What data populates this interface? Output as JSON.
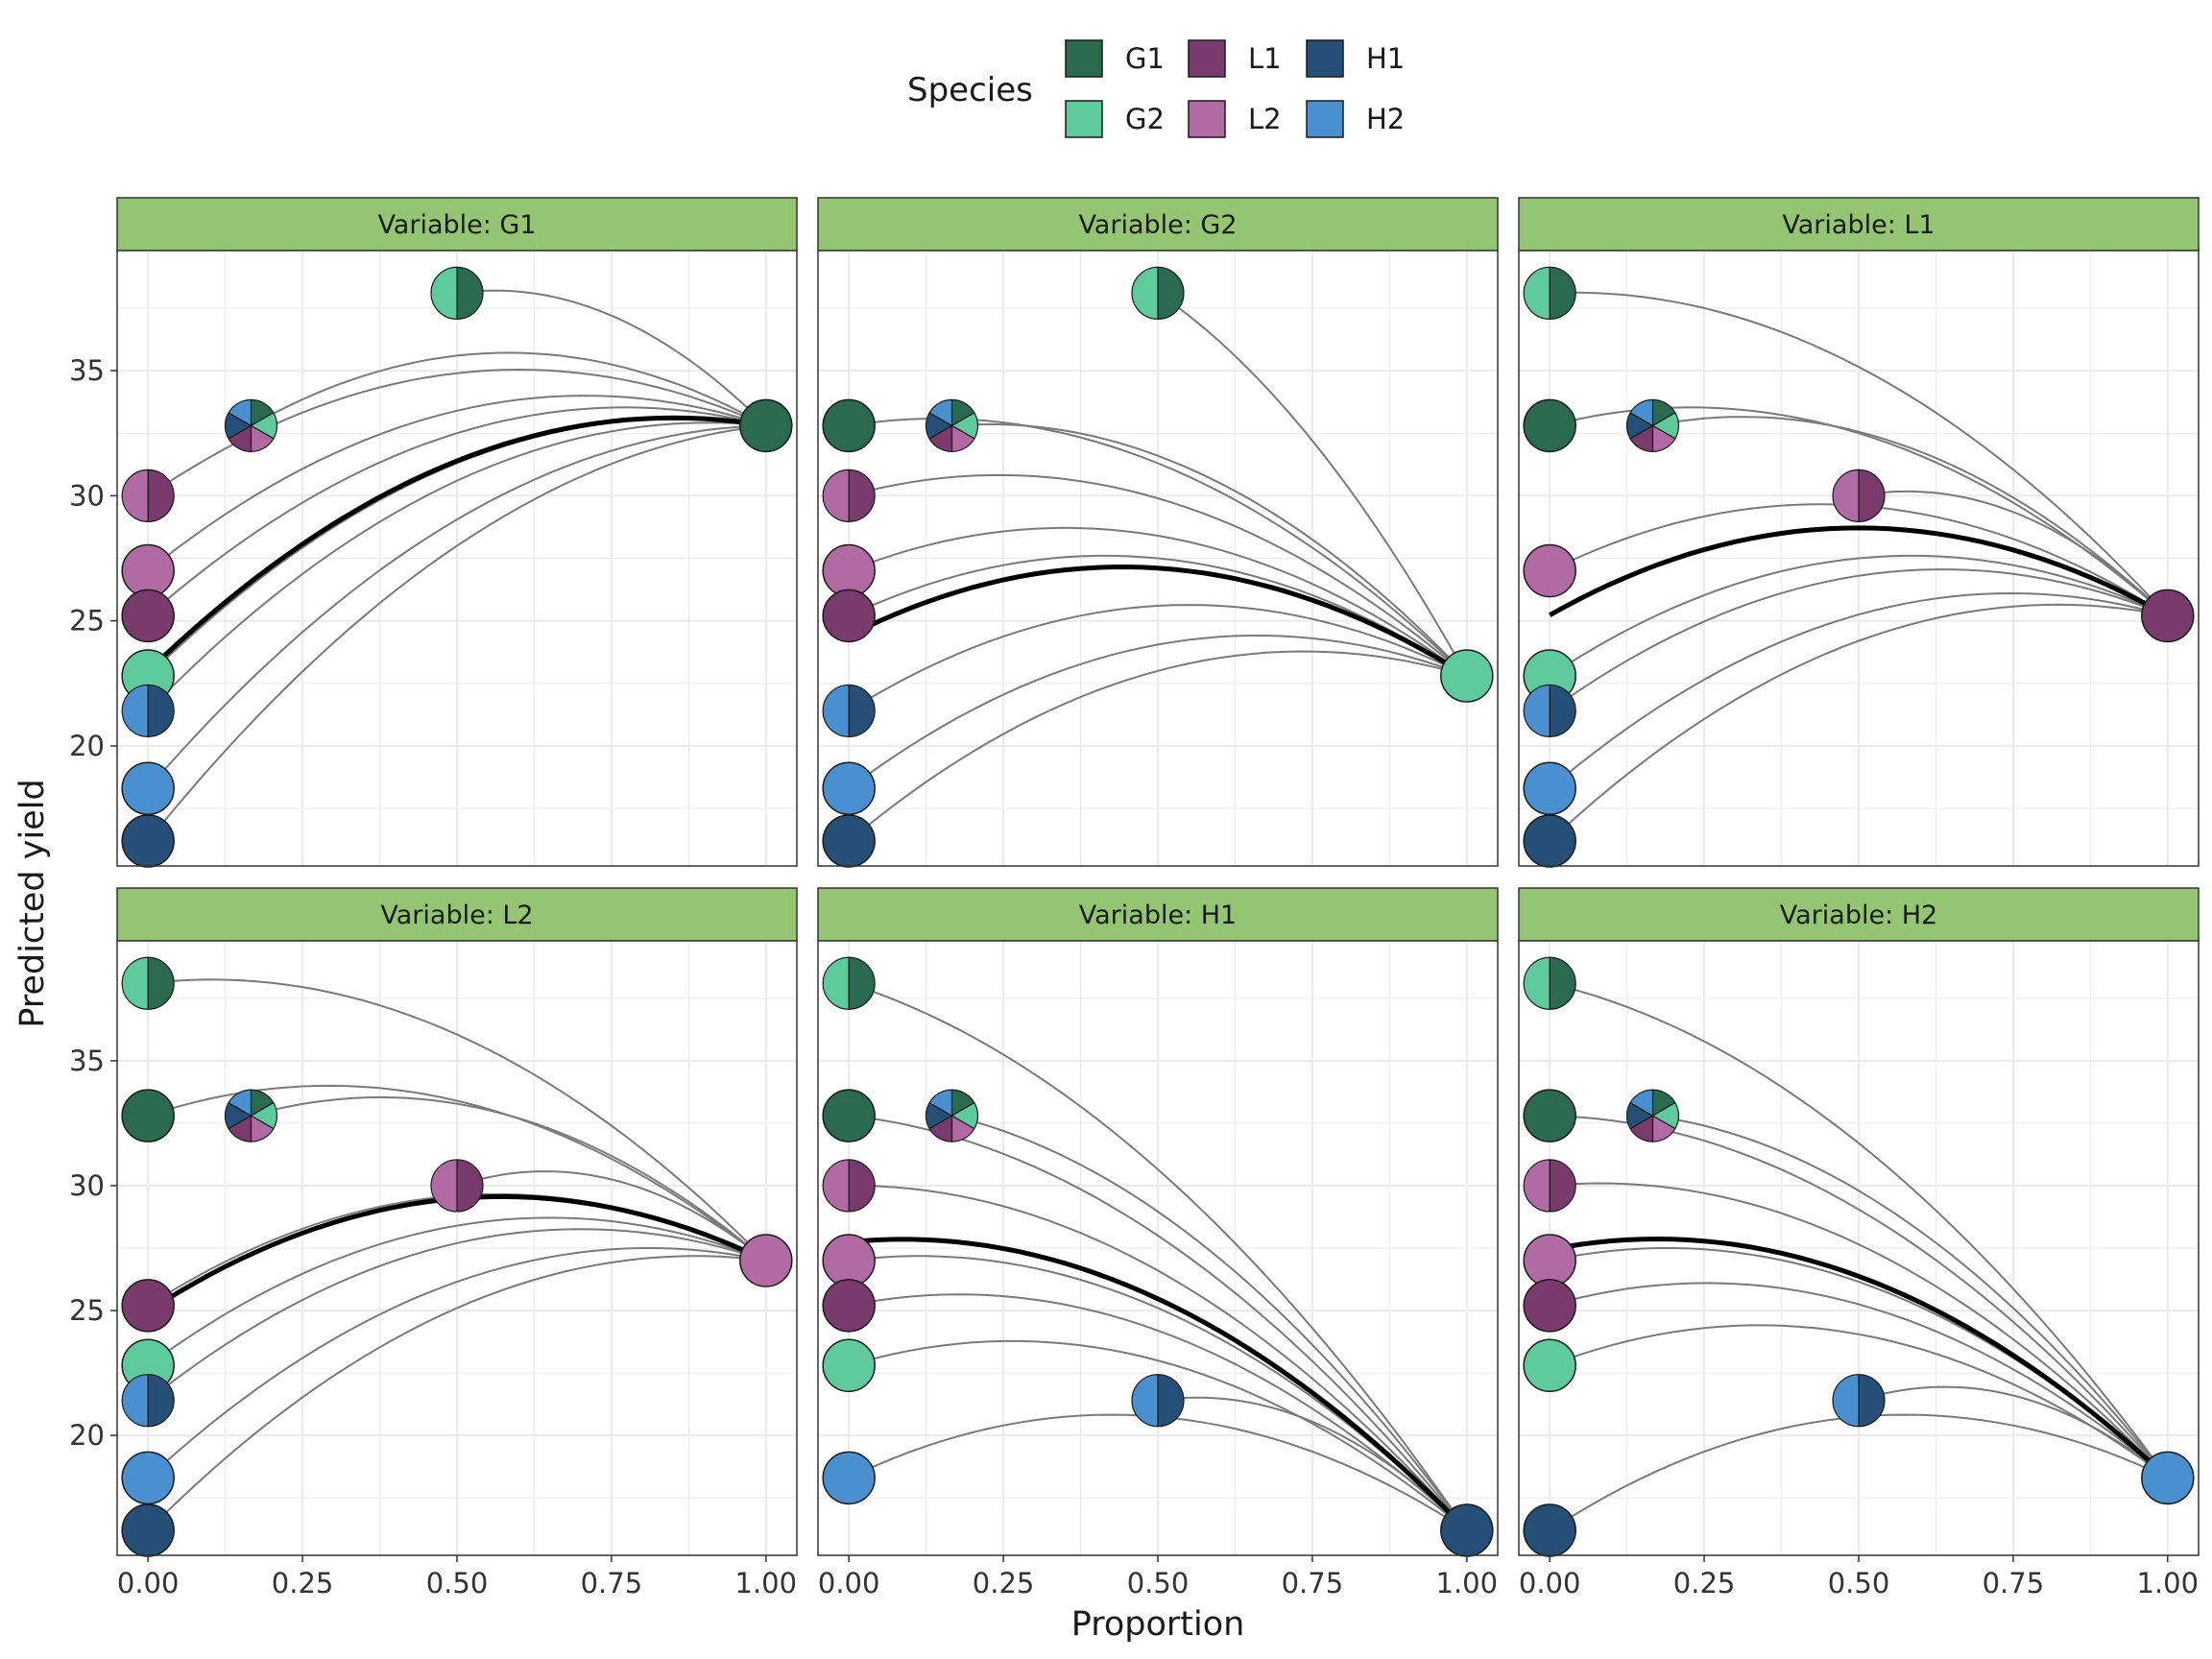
{
  "chart_data": {
    "type": "line",
    "xlabel": "Proportion",
    "ylabel": "Predicted yield",
    "xlim": [
      -0.05,
      1.05
    ],
    "ylim": [
      15.2,
      39.8
    ],
    "x_ticks": [
      "0.00",
      "0.25",
      "0.50",
      "0.75",
      "1.00"
    ],
    "x_tick_values": [
      0,
      0.25,
      0.5,
      0.75,
      1
    ],
    "y_ticks": [
      "20",
      "25",
      "30",
      "35"
    ],
    "y_tick_values": [
      20,
      25,
      30,
      35
    ],
    "grid": true,
    "legend": {
      "title": "Species",
      "placement": "top",
      "items": [
        {
          "key": "G1",
          "label": "G1",
          "color": "#2A6A4F"
        },
        {
          "key": "G2",
          "label": "G2",
          "color": "#5FCB9C"
        },
        {
          "key": "L1",
          "label": "L1",
          "color": "#793B6B"
        },
        {
          "key": "L2",
          "label": "L2",
          "color": "#B16AA3"
        },
        {
          "key": "H1",
          "label": "H1",
          "color": "#264F78"
        },
        {
          "key": "H2",
          "label": "H2",
          "color": "#4A90D1"
        }
      ]
    },
    "community_yields": {
      "G1": 32.8,
      "G2": 22.8,
      "L1": 25.2,
      "L2": 27.0,
      "H1": 16.2,
      "H2": 18.3,
      "G1G2": 38.1,
      "L1L2": 30.0,
      "H1H2": 21.4,
      "Centroid": 32.8
    },
    "panels": [
      {
        "strip": "Variable: G1",
        "variable": "G1",
        "points": [
          {
            "x": 0.5,
            "y": 38.1,
            "community": "G1G2"
          },
          {
            "x": 0.1667,
            "y": 32.8,
            "community": "Centroid"
          },
          {
            "x": 1.0,
            "y": 32.8,
            "community": "G1"
          },
          {
            "x": 0.0,
            "y": 30.0,
            "community": "L1L2"
          },
          {
            "x": 0.0,
            "y": 27.0,
            "community": "L2"
          },
          {
            "x": 0.0,
            "y": 25.2,
            "community": "L1"
          },
          {
            "x": 0.0,
            "y": 22.8,
            "community": "G2"
          },
          {
            "x": 0.0,
            "y": 21.4,
            "community": "H1H2"
          },
          {
            "x": 0.0,
            "y": 18.3,
            "community": "H2"
          },
          {
            "x": 0.0,
            "y": 16.2,
            "community": "H1"
          }
        ]
      },
      {
        "strip": "Variable: G2",
        "variable": "G2",
        "points": [
          {
            "x": 0.5,
            "y": 38.1,
            "community": "G1G2"
          },
          {
            "x": 0.1667,
            "y": 32.8,
            "community": "Centroid"
          },
          {
            "x": 0.0,
            "y": 32.8,
            "community": "G1"
          },
          {
            "x": 0.0,
            "y": 30.0,
            "community": "L1L2"
          },
          {
            "x": 0.0,
            "y": 27.0,
            "community": "L2"
          },
          {
            "x": 0.0,
            "y": 25.2,
            "community": "L1"
          },
          {
            "x": 1.0,
            "y": 22.8,
            "community": "G2"
          },
          {
            "x": 0.0,
            "y": 21.4,
            "community": "H1H2"
          },
          {
            "x": 0.0,
            "y": 18.3,
            "community": "H2"
          },
          {
            "x": 0.0,
            "y": 16.2,
            "community": "H1"
          }
        ]
      },
      {
        "strip": "Variable: L1",
        "variable": "L1",
        "points": [
          {
            "x": 0.0,
            "y": 38.1,
            "community": "G1G2"
          },
          {
            "x": 0.1667,
            "y": 32.8,
            "community": "Centroid"
          },
          {
            "x": 0.0,
            "y": 32.8,
            "community": "G1"
          },
          {
            "x": 0.5,
            "y": 30.0,
            "community": "L1L2"
          },
          {
            "x": 0.0,
            "y": 27.0,
            "community": "L2"
          },
          {
            "x": 1.0,
            "y": 25.2,
            "community": "L1"
          },
          {
            "x": 0.0,
            "y": 22.8,
            "community": "G2"
          },
          {
            "x": 0.0,
            "y": 21.4,
            "community": "H1H2"
          },
          {
            "x": 0.0,
            "y": 18.3,
            "community": "H2"
          },
          {
            "x": 0.0,
            "y": 16.2,
            "community": "H1"
          }
        ]
      },
      {
        "strip": "Variable: L2",
        "variable": "L2",
        "points": [
          {
            "x": 0.0,
            "y": 38.1,
            "community": "G1G2"
          },
          {
            "x": 0.1667,
            "y": 32.8,
            "community": "Centroid"
          },
          {
            "x": 0.0,
            "y": 32.8,
            "community": "G1"
          },
          {
            "x": 0.5,
            "y": 30.0,
            "community": "L1L2"
          },
          {
            "x": 1.0,
            "y": 27.0,
            "community": "L2"
          },
          {
            "x": 0.0,
            "y": 25.2,
            "community": "L1"
          },
          {
            "x": 0.0,
            "y": 22.8,
            "community": "G2"
          },
          {
            "x": 0.0,
            "y": 21.4,
            "community": "H1H2"
          },
          {
            "x": 0.0,
            "y": 18.3,
            "community": "H2"
          },
          {
            "x": 0.0,
            "y": 16.2,
            "community": "H1"
          }
        ]
      },
      {
        "strip": "Variable: H1",
        "variable": "H1",
        "points": [
          {
            "x": 0.0,
            "y": 38.1,
            "community": "G1G2"
          },
          {
            "x": 0.1667,
            "y": 32.8,
            "community": "Centroid"
          },
          {
            "x": 0.0,
            "y": 32.8,
            "community": "G1"
          },
          {
            "x": 0.0,
            "y": 30.0,
            "community": "L1L2"
          },
          {
            "x": 0.0,
            "y": 27.0,
            "community": "L2"
          },
          {
            "x": 0.0,
            "y": 25.2,
            "community": "L1"
          },
          {
            "x": 0.0,
            "y": 22.8,
            "community": "G2"
          },
          {
            "x": 0.5,
            "y": 21.4,
            "community": "H1H2"
          },
          {
            "x": 0.0,
            "y": 18.3,
            "community": "H2"
          },
          {
            "x": 1.0,
            "y": 16.2,
            "community": "H1"
          }
        ]
      },
      {
        "strip": "Variable: H2",
        "variable": "H2",
        "points": [
          {
            "x": 0.0,
            "y": 38.1,
            "community": "G1G2"
          },
          {
            "x": 0.1667,
            "y": 32.8,
            "community": "Centroid"
          },
          {
            "x": 0.0,
            "y": 32.8,
            "community": "G1"
          },
          {
            "x": 0.0,
            "y": 30.0,
            "community": "L1L2"
          },
          {
            "x": 0.0,
            "y": 27.0,
            "community": "L2"
          },
          {
            "x": 0.0,
            "y": 25.2,
            "community": "L1"
          },
          {
            "x": 0.0,
            "y": 22.8,
            "community": "G2"
          },
          {
            "x": 0.5,
            "y": 21.4,
            "community": "H1H2"
          },
          {
            "x": 1.0,
            "y": 18.3,
            "community": "H2"
          },
          {
            "x": 0.0,
            "y": 16.2,
            "community": "H1"
          }
        ]
      }
    ],
    "colors": {
      "strip_fill": "#93C572",
      "curve": "#7A7A7A",
      "average_curve": "#000000",
      "grid": "#EBEBEB"
    }
  }
}
